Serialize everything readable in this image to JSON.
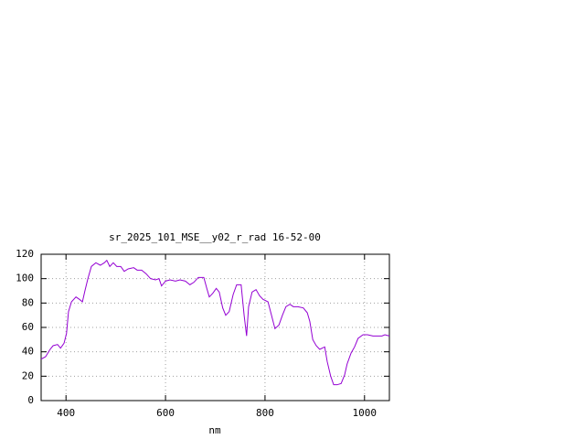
{
  "chart_data": {
    "type": "line",
    "title": "sr_2025_101_MSE__y02_r_rad 16-52-00",
    "x_label": "nm",
    "x": [
      350,
      359,
      368,
      374,
      383,
      389,
      396,
      401,
      405,
      411,
      420,
      427,
      433,
      438,
      444,
      451,
      460,
      469,
      477,
      482,
      488,
      495,
      502,
      510,
      517,
      525,
      536,
      543,
      552,
      561,
      570,
      580,
      587,
      592,
      600,
      609,
      620,
      629,
      640,
      649,
      657,
      666,
      677,
      683,
      688,
      695,
      702,
      708,
      715,
      721,
      728,
      736,
      743,
      752,
      758,
      763,
      767,
      774,
      782,
      789,
      796,
      806,
      813,
      820,
      828,
      835,
      842,
      850,
      857,
      866,
      877,
      885,
      890,
      896,
      903,
      910,
      920,
      925,
      932,
      938,
      945,
      953,
      960,
      965,
      973,
      980,
      987,
      997,
      1006,
      1017,
      1028,
      1035,
      1041,
      1050
    ],
    "series": [
      {
        "color": "#9400d3",
        "values": [
          34,
          36,
          42,
          45,
          46,
          43,
          47,
          55,
          73,
          81,
          85,
          83,
          81,
          90,
          100,
          110,
          113,
          111,
          113,
          115,
          110,
          113,
          110,
          110,
          106,
          108,
          109,
          107,
          107,
          104,
          100,
          99,
          100,
          94,
          98,
          99,
          98,
          99,
          98,
          95,
          97,
          101,
          101,
          92,
          85,
          88,
          92,
          89,
          76,
          70,
          73,
          87,
          95,
          95,
          70,
          53,
          77,
          89,
          91,
          86,
          83,
          81,
          70,
          59,
          62,
          70,
          77,
          79,
          77,
          77,
          76,
          72,
          65,
          50,
          45,
          42,
          44,
          32,
          20,
          13,
          13,
          14,
          21,
          30,
          39,
          44,
          51,
          54,
          54,
          53,
          53,
          53,
          54,
          53
        ]
      }
    ],
    "xlim": [
      350,
      1050
    ],
    "xticks": [
      400,
      600,
      800,
      1000
    ],
    "ylim": [
      0,
      120
    ],
    "yticks": [
      0,
      20,
      40,
      60,
      80,
      100,
      120
    ],
    "grid": true
  }
}
